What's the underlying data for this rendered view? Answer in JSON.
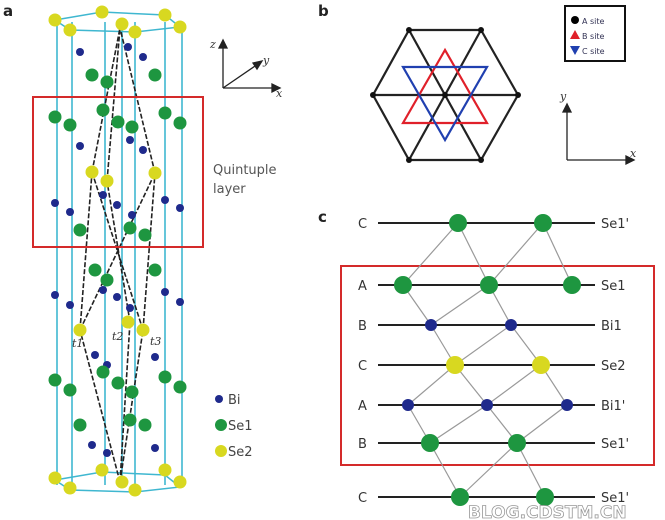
{
  "panels": {
    "a": "a",
    "b": "b",
    "c": "c"
  },
  "panel_a": {
    "box_label_line1": "Quintuple",
    "box_label_line2": "layer",
    "vector_labels": [
      "t1",
      "t2",
      "t3"
    ],
    "axes": {
      "z": "z",
      "y": "y",
      "x": "x"
    },
    "legend": [
      {
        "label": "Bi",
        "color": "#1f2a8c"
      },
      {
        "label": "Se1",
        "color": "#1e9640"
      },
      {
        "label": "Se2",
        "color": "#d8d820"
      }
    ]
  },
  "panel_b": {
    "legend": [
      {
        "label": "A site",
        "color": "#000000",
        "shape": "circle"
      },
      {
        "label": "B site",
        "color": "#e0202a",
        "shape": "triangle-up"
      },
      {
        "label": "C site",
        "color": "#2040b0",
        "shape": "triangle-down"
      }
    ],
    "axes": {
      "y": "y",
      "x": "x"
    }
  },
  "panel_c": {
    "rows": [
      {
        "site": "C",
        "layer": "Se1'",
        "site_color": "#3a5a9a"
      },
      {
        "site": "A",
        "layer": "Se1",
        "site_color": "#333333"
      },
      {
        "site": "B",
        "layer": "Bi1",
        "site_color": "#e0303a"
      },
      {
        "site": "C",
        "layer": "Se2",
        "site_color": "#3a5a9a"
      },
      {
        "site": "A",
        "layer": "Bi1'",
        "site_color": "#333333"
      },
      {
        "site": "B",
        "layer": "Se1'",
        "site_color": "#e0303a"
      },
      {
        "site": "C",
        "layer": "Se1'",
        "site_color": "#3a5a9a"
      }
    ]
  },
  "watermark": "BLOG.CDSTM.CN",
  "colors": {
    "box": "#d42a2a",
    "cell": "#3fb7d0",
    "Bi": "#1f2a8c",
    "Se1": "#1e9640",
    "Se2": "#d8d820"
  }
}
